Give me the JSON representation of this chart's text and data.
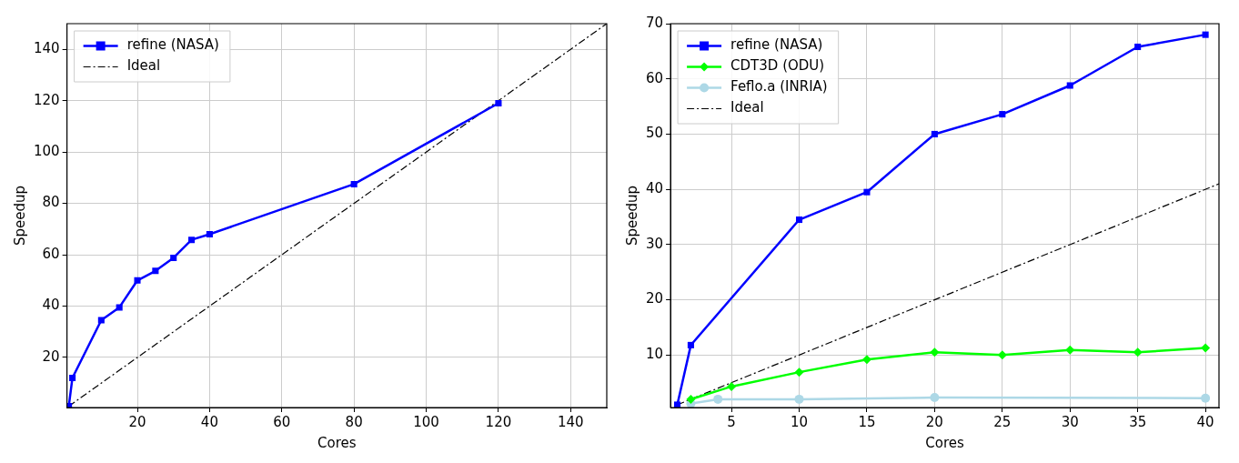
{
  "chart_data": [
    {
      "type": "line",
      "xlabel": "Cores",
      "ylabel": "Speedup",
      "xlim": [
        0.5,
        150
      ],
      "ylim": [
        0.5,
        150
      ],
      "xticks": [
        20,
        40,
        60,
        80,
        100,
        120,
        140
      ],
      "yticks": [
        20,
        40,
        60,
        80,
        100,
        120,
        140
      ],
      "grid": true,
      "legend": "top left",
      "series": [
        {
          "name": "refine (NASA)",
          "color": "#0000ff",
          "marker": "square",
          "line_style": "solid",
          "x": [
            1,
            2,
            10,
            15,
            20,
            25,
            30,
            35,
            40,
            80,
            120
          ],
          "values": [
            1,
            12,
            34.5,
            39.5,
            50,
            53.7,
            58.8,
            65.8,
            68,
            87.5,
            119
          ]
        },
        {
          "name": "Ideal",
          "color": "#000000",
          "marker": "none",
          "line_style": "dashed",
          "x": [
            1,
            150
          ],
          "values": [
            1,
            150
          ]
        }
      ]
    },
    {
      "type": "line",
      "xlabel": "Cores",
      "ylabel": "Speedup",
      "xlim": [
        0.5,
        41
      ],
      "ylim": [
        0.5,
        70
      ],
      "xticks": [
        5,
        10,
        15,
        20,
        25,
        30,
        35,
        40
      ],
      "yticks": [
        10,
        20,
        30,
        40,
        50,
        60,
        70
      ],
      "grid": true,
      "legend": "top left",
      "series": [
        {
          "name": "refine (NASA)",
          "color": "#0000ff",
          "marker": "square",
          "line_style": "solid",
          "x": [
            1,
            2,
            10,
            15,
            20,
            25,
            30,
            35,
            40
          ],
          "values": [
            1,
            11.8,
            34.5,
            39.5,
            50,
            53.6,
            58.8,
            65.8,
            68
          ]
        },
        {
          "name": "CDT3D (ODU)",
          "color": "#00ff00",
          "marker": "diamond",
          "line_style": "solid",
          "x": [
            2,
            5,
            10,
            15,
            20,
            25,
            30,
            35,
            40
          ],
          "values": [
            2,
            4.3,
            6.9,
            9.2,
            10.5,
            10,
            10.9,
            10.5,
            11.3
          ]
        },
        {
          "name": "Feflo.a (INRIA)",
          "color": "#add8e6",
          "marker": "circle",
          "line_style": "solid",
          "x": [
            2,
            4,
            10,
            20,
            40
          ],
          "values": [
            1.2,
            2,
            2,
            2.3,
            2.2
          ]
        },
        {
          "name": "Ideal",
          "color": "#000000",
          "marker": "none",
          "line_style": "dashed",
          "x": [
            1,
            41
          ],
          "values": [
            1,
            41
          ]
        }
      ]
    }
  ]
}
